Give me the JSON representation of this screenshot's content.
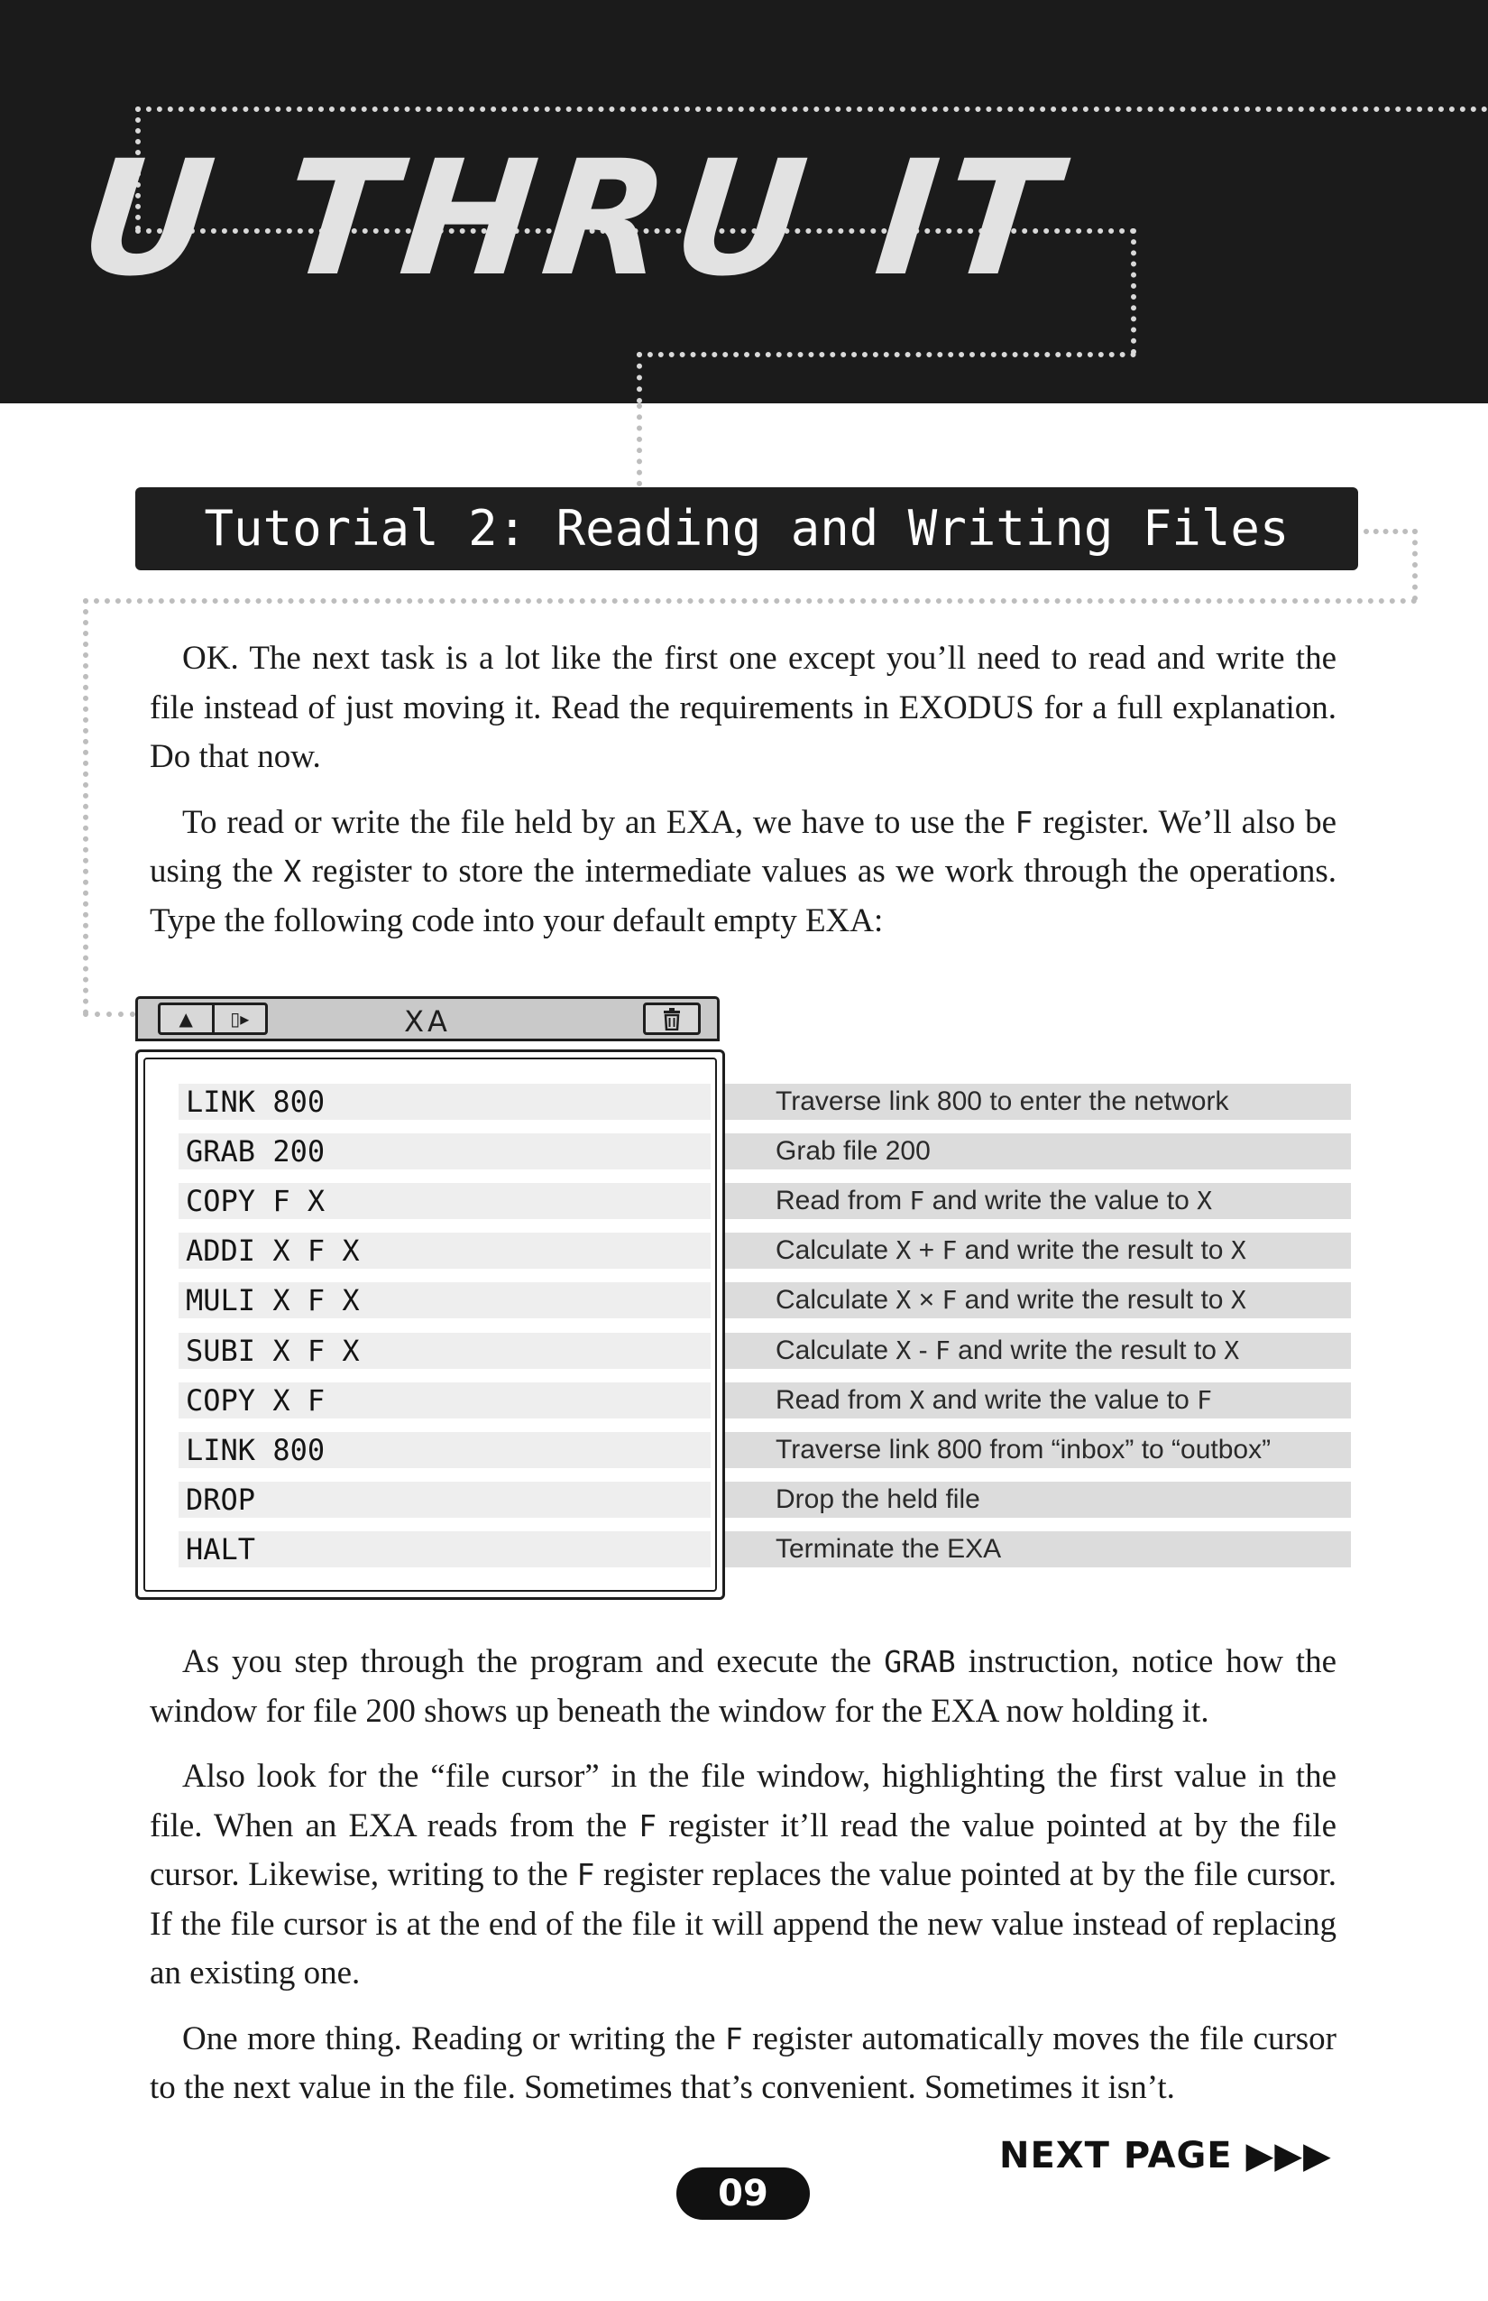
{
  "header": {
    "title": "U THRU IT"
  },
  "tutorial": {
    "heading": "Tutorial 2: Reading and Writing Files"
  },
  "intro": {
    "p1": "OK. The next task is a lot like the first one except you’ll need to read and write the file instead of just moving it. Read the requirements in EXODUS for a full explanation. Do that now.",
    "p2_a": "To read or write the file held by an EXA, we have to use the ",
    "p2_code1": "F",
    "p2_b": " register. We’ll also be using the ",
    "p2_code2": "X",
    "p2_c": " register to store the intermediate values as we work through the operations. Type the following code into your default empty EXA:"
  },
  "exa_window": {
    "title": "XA",
    "btn_up": "▲",
    "btn_split": "▯▸",
    "trash_icon": "trash-icon"
  },
  "code_lines": [
    "LINK 800",
    "GRAB 200",
    "COPY F X",
    "ADDI X F X",
    "MULI X F X",
    "SUBI X F X",
    "COPY X F",
    "LINK 800",
    "DROP",
    "HALT"
  ],
  "annotations": [
    {
      "parts": [
        {
          "t": "Traverse link 800 to enter the network"
        }
      ]
    },
    {
      "parts": [
        {
          "t": "Grab file 200"
        }
      ]
    },
    {
      "parts": [
        {
          "t": "Read from "
        },
        {
          "t": "F",
          "c": true
        },
        {
          "t": " and write the value to "
        },
        {
          "t": "X",
          "c": true
        }
      ]
    },
    {
      "parts": [
        {
          "t": "Calculate "
        },
        {
          "t": "X",
          "c": true
        },
        {
          "t": " + "
        },
        {
          "t": "F",
          "c": true
        },
        {
          "t": " and write the result to "
        },
        {
          "t": "X",
          "c": true
        }
      ]
    },
    {
      "parts": [
        {
          "t": "Calculate "
        },
        {
          "t": "X",
          "c": true
        },
        {
          "t": " × "
        },
        {
          "t": "F",
          "c": true
        },
        {
          "t": " and write the result to "
        },
        {
          "t": "X",
          "c": true
        }
      ]
    },
    {
      "parts": [
        {
          "t": "Calculate "
        },
        {
          "t": "X",
          "c": true
        },
        {
          "t": " - "
        },
        {
          "t": "F",
          "c": true
        },
        {
          "t": " and write the result to "
        },
        {
          "t": "X",
          "c": true
        }
      ]
    },
    {
      "parts": [
        {
          "t": "Read from "
        },
        {
          "t": "X",
          "c": true
        },
        {
          "t": " and write the value to "
        },
        {
          "t": "F",
          "c": true
        }
      ]
    },
    {
      "parts": [
        {
          "t": "Traverse link 800 from “inbox” to “outbox”"
        }
      ]
    },
    {
      "parts": [
        {
          "t": "Drop the held file"
        }
      ]
    },
    {
      "parts": [
        {
          "t": "Terminate the EXA"
        }
      ]
    }
  ],
  "outro": {
    "p1_a": "As you step through the program and execute the ",
    "p1_code": "GRAB",
    "p1_b": " instruction, notice how the window for file 200 shows up beneath the window for the EXA now holding it.",
    "p2_a": "Also look for the “file cursor” in the file window, highlighting the first value in the file. When an EXA reads from the ",
    "p2_code1": "F",
    "p2_b": " register it’ll read the value pointed at by the file cursor. Likewise, writing to the ",
    "p2_code2": "F",
    "p2_c": " register replaces the value pointed at by the file cursor. If the file cursor is at the end of the file it will append the new value instead of replacing an existing one.",
    "p3_a": "One more thing. Reading or writing the ",
    "p3_code": "F",
    "p3_b": " register automatically moves the file cursor to the next value in the file. Sometimes that’s convenient. Sometimes it isn’t."
  },
  "footer": {
    "next_page": "NEXT PAGE ▶▶▶",
    "page_number": "09"
  }
}
